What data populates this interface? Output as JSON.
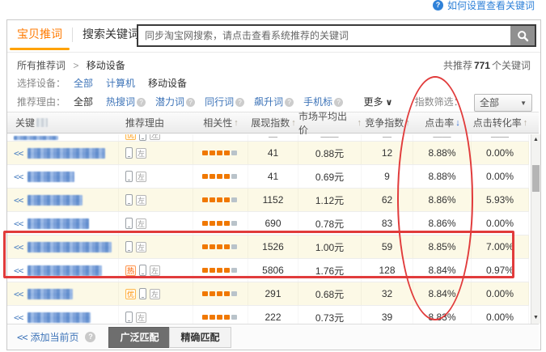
{
  "help": {
    "label": "如何设置查看关键词",
    "icon": "question-circle"
  },
  "tabs": [
    {
      "label": "宝贝推词",
      "active": true
    },
    {
      "label": "搜索关键词",
      "active": false
    }
  ],
  "search": {
    "placeholder": "同步淘宝网搜索，请点击查看系统推荐的关键词",
    "button_icon": "search-magnifier"
  },
  "breadcrumb": {
    "root": "所有推荐词",
    "sep": ">",
    "current": "移动设备"
  },
  "summary": {
    "prefix": "共推荐",
    "count": "771",
    "suffix": "个关键词"
  },
  "device_filter": {
    "label": "选择设备：",
    "options": [
      {
        "label": "全部",
        "selected": false
      },
      {
        "label": "计算机",
        "selected": false
      },
      {
        "label": "移动设备",
        "selected": true
      }
    ]
  },
  "reason_filter": {
    "label": "推荐理由：",
    "all": "全部",
    "options": [
      "热搜词",
      "潜力词",
      "同行词",
      "飙升词",
      "手机标"
    ],
    "more": "更多",
    "index_label": "指数筛选：",
    "index_value": "全部"
  },
  "icons": {
    "sort_asc": "↑",
    "sort_desc": "↓",
    "caret_down": "▼",
    "chevron_more": "∨",
    "scroll_up": "▲",
    "scroll_down": "▼",
    "question": "?"
  },
  "table": {
    "columns": [
      {
        "label": "关键",
        "mosaic": true,
        "sort": null
      },
      {
        "label": "推荐理由",
        "sort": null
      },
      {
        "label": "相关性",
        "sort": "asc"
      },
      {
        "label": "展现指数",
        "sort": "asc"
      },
      {
        "label": "市场平均出价",
        "sort": "asc"
      },
      {
        "label": "竞争指数",
        "sort": "asc"
      },
      {
        "label": "点击率",
        "sort": "desc-active"
      },
      {
        "label": "点击转化率",
        "sort": "asc"
      }
    ],
    "badge_labels": {
      "hot": "热",
      "premium": "优",
      "left": "左"
    },
    "partial_row": {
      "mosaic_width": 55,
      "badges": [
        "premium",
        "phone",
        "left"
      ],
      "values": [
        "––",
        "––––",
        "––",
        "––––",
        "––––"
      ]
    },
    "rows": [
      {
        "prefix": "<<",
        "mosaic_width": 96,
        "badges": [
          "phone",
          "left"
        ],
        "relevance_on": 4,
        "relevance_total": 5,
        "impressions": "41",
        "avg_bid": "0.88元",
        "competition": "12",
        "ctr": "8.88%",
        "cvr": "0.00%",
        "highlighted": false
      },
      {
        "prefix": "<<",
        "mosaic_width": 58,
        "badges": [
          "phone",
          "left"
        ],
        "relevance_on": 4,
        "relevance_total": 5,
        "impressions": "41",
        "avg_bid": "0.69元",
        "competition": "9",
        "ctr": "8.88%",
        "cvr": "0.00%",
        "highlighted": false
      },
      {
        "prefix": "<<",
        "mosaic_width": 68,
        "badges": [
          "phone",
          "left"
        ],
        "relevance_on": 4,
        "relevance_total": 5,
        "impressions": "1152",
        "avg_bid": "1.12元",
        "competition": "62",
        "ctr": "8.86%",
        "cvr": "5.93%",
        "highlighted": false
      },
      {
        "prefix": "<<",
        "mosaic_width": 76,
        "badges": [
          "phone",
          "left"
        ],
        "relevance_on": 4,
        "relevance_total": 5,
        "impressions": "690",
        "avg_bid": "0.78元",
        "competition": "83",
        "ctr": "8.86%",
        "cvr": "0.00%",
        "highlighted": false
      },
      {
        "prefix": "<<",
        "mosaic_width": 104,
        "badges": [
          "phone",
          "left"
        ],
        "relevance_on": 4,
        "relevance_total": 5,
        "impressions": "1526",
        "avg_bid": "1.00元",
        "competition": "59",
        "ctr": "8.85%",
        "cvr": "7.00%",
        "highlighted": true
      },
      {
        "prefix": "<<",
        "mosaic_width": 92,
        "badges": [
          "hot",
          "phone",
          "left"
        ],
        "relevance_on": 4,
        "relevance_total": 5,
        "impressions": "5806",
        "avg_bid": "1.76元",
        "competition": "128",
        "ctr": "8.84%",
        "cvr": "0.97%",
        "highlighted": true
      },
      {
        "prefix": "<<",
        "mosaic_width": 56,
        "badges": [
          "premium",
          "phone",
          "left"
        ],
        "relevance_on": 4,
        "relevance_total": 5,
        "impressions": "291",
        "avg_bid": "0.68元",
        "competition": "32",
        "ctr": "8.84%",
        "cvr": "0.00%",
        "highlighted": false
      },
      {
        "prefix": "<<",
        "mosaic_width": 78,
        "badges": [
          "phone",
          "left"
        ],
        "relevance_on": 4,
        "relevance_total": 5,
        "impressions": "222",
        "avg_bid": "0.73元",
        "competition": "39",
        "ctr": "8.83%",
        "cvr": "0.00%",
        "highlighted": false
      }
    ]
  },
  "footer": {
    "add_prefix": "<<",
    "add_label": "添加当前页",
    "broad_label": "广泛匹配",
    "exact_label": "精确匹配"
  },
  "colors": {
    "accent_orange": "#ff7a00",
    "tab_underline": "#ffa200",
    "link_blue": "#3e74b8",
    "sort_active_blue": "#2f6bd6",
    "annotation_red": "#e13b3b",
    "row_yellow": "#fcf9e6",
    "bar_on": "#f07800",
    "bar_off": "#b9c3ca"
  }
}
